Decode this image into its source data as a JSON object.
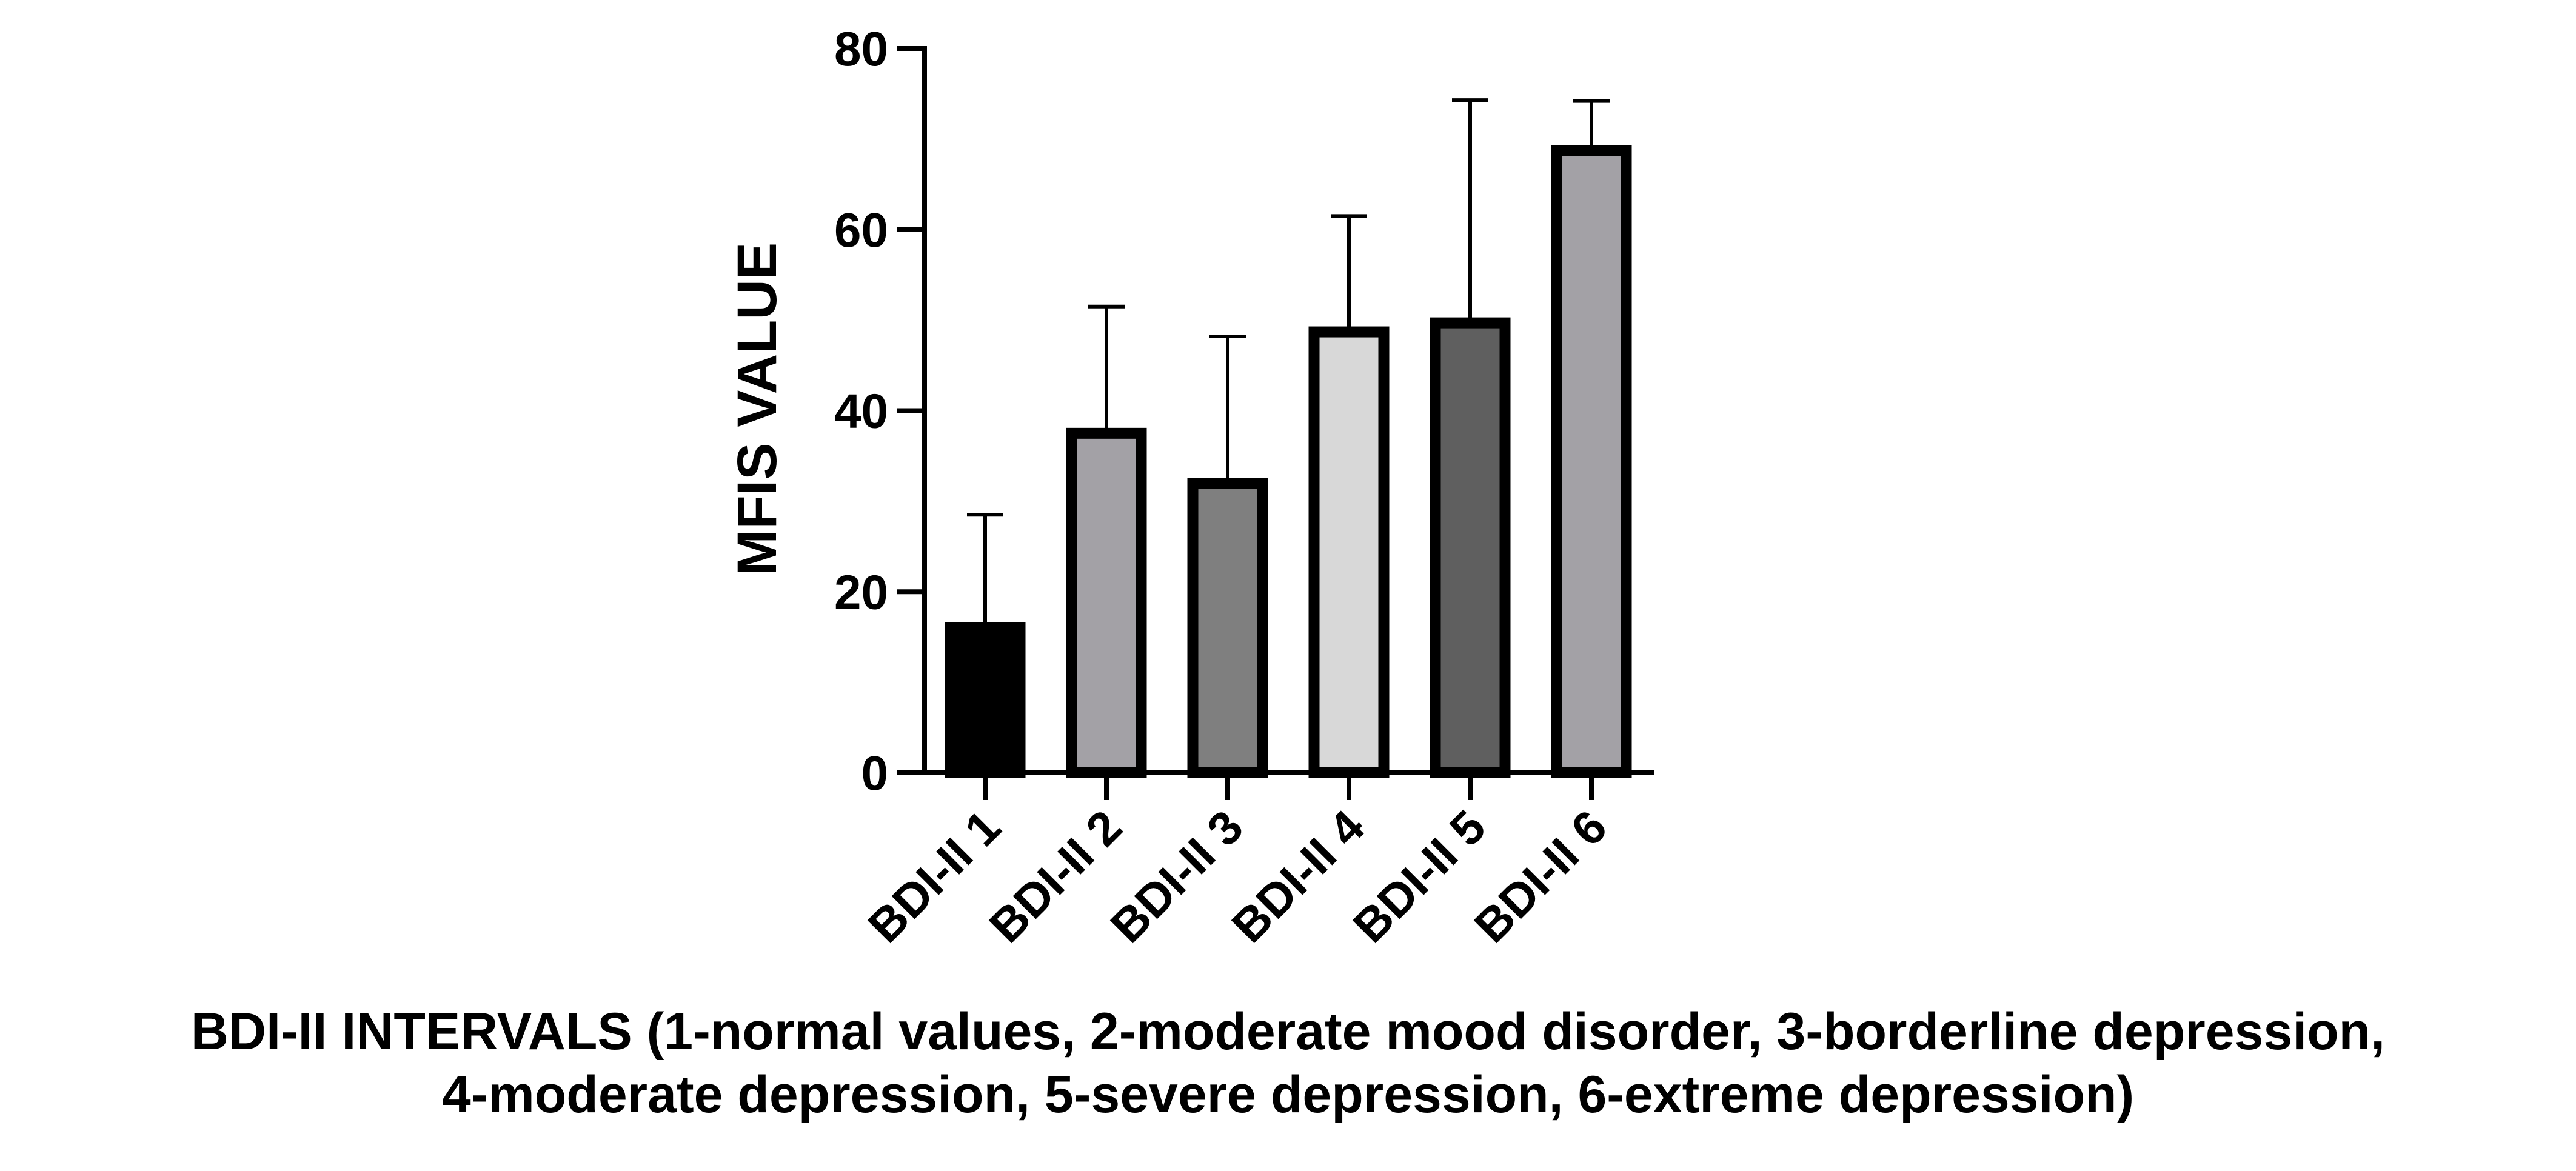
{
  "chart_data": {
    "type": "bar",
    "title": "",
    "ylabel": "MFIS VALUE",
    "xlabel_lines": [
      "BDI-II INTERVALS (1-normal values, 2-moderate mood disorder, 3-borderline depression,",
      "4-moderate depression, 5-severe depression, 6-extreme depression)"
    ],
    "categories": [
      "BDI-II 1",
      "BDI-II 2",
      "BDI-II 3",
      "BDI-II 4",
      "BDI-II 5",
      "BDI-II 6"
    ],
    "values": [
      16,
      37.5,
      32,
      48.7,
      49.7,
      68.7
    ],
    "error_upper": [
      28.5,
      51.5,
      48.2,
      61.5,
      74.3,
      74.2
    ],
    "colors": [
      "#000000",
      "#a3a1a6",
      "#7f7f7f",
      "#d8d8d8",
      "#5f5f5f",
      "#a3a1a6"
    ],
    "ylim": [
      0,
      80
    ],
    "yticks": [
      0,
      20,
      40,
      60,
      80
    ],
    "grid": false,
    "legend": "none"
  }
}
